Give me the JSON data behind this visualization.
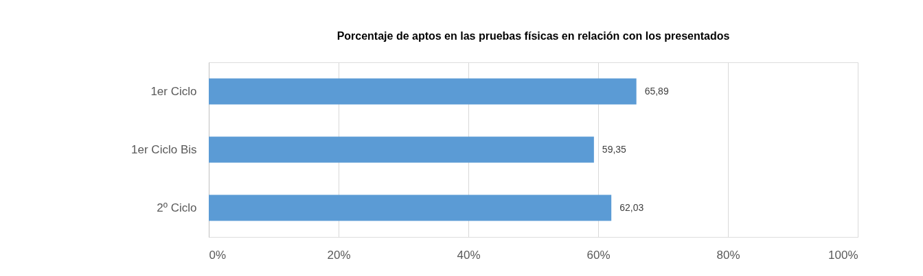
{
  "chart_data": {
    "type": "bar",
    "orientation": "horizontal",
    "title": "Porcentaje de aptos en las pruebas físicas en relación con los presentados",
    "categories": [
      "1er Ciclo",
      "1er Ciclo Bis",
      "2º Ciclo"
    ],
    "values": [
      65.89,
      59.35,
      62.03
    ],
    "color": "#5b9bd5",
    "value_labels": [
      "65,89",
      "59,35",
      "62,03"
    ],
    "xlim": [
      0,
      100
    ],
    "xticks": [
      {
        "value": 0,
        "label": "0%"
      },
      {
        "value": 20,
        "label": "20%"
      },
      {
        "value": 40,
        "label": "40%"
      },
      {
        "value": 60,
        "label": "60%"
      },
      {
        "value": 80,
        "label": "80%"
      },
      {
        "value": 100,
        "label": "100%"
      }
    ],
    "grid": "x"
  }
}
